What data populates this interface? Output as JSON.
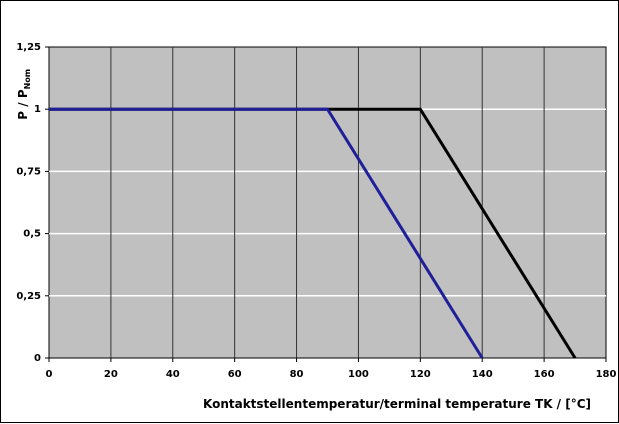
{
  "chart_data": {
    "type": "line",
    "xlabel": "Kontaktstellentemperatur/terminal temperature TK / [°C]",
    "ylabel": {
      "main": "P / P",
      "subscript": "Nom"
    },
    "xlim": [
      0,
      180
    ],
    "ylim": [
      0,
      1.25
    ],
    "x_ticks": [
      0,
      20,
      40,
      60,
      80,
      100,
      120,
      140,
      160,
      180
    ],
    "x_tick_labels": [
      "0",
      "20",
      "40",
      "60",
      "80",
      "100",
      "120",
      "140",
      "160",
      "180"
    ],
    "y_ticks": [
      0,
      0.25,
      0.5,
      0.75,
      1,
      1.25
    ],
    "y_tick_labels": [
      "0",
      "0,25",
      "0,5",
      "0,75",
      "1",
      "1,25"
    ],
    "grid": true,
    "plot_background": "#c0c0c0",
    "series": [
      {
        "color": "#000000",
        "points": [
          [
            0,
            1
          ],
          [
            120,
            1
          ],
          [
            170,
            0
          ]
        ]
      },
      {
        "color": "#1f1f99",
        "points": [
          [
            0,
            1
          ],
          [
            90,
            1
          ],
          [
            140,
            0
          ]
        ]
      }
    ]
  }
}
